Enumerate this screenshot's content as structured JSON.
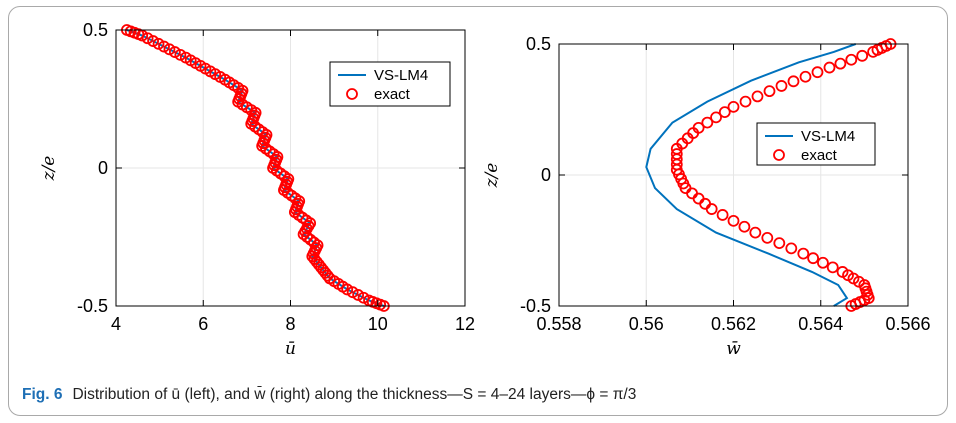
{
  "caption": {
    "label": "Fig. 6",
    "text": "Distribution of ū (left), and w̄ (right) along the thickness—S = 4–24 layers—ϕ = π/3"
  },
  "colors": {
    "series_line": "#0072bd",
    "series_marker": "#ff0000",
    "grid": "#e6e6e6",
    "axis": "#000000"
  },
  "chart_data": [
    {
      "type": "line",
      "title": "",
      "xlabel": "ū",
      "ylabel": "z/e",
      "xlim": [
        4,
        12
      ],
      "ylim": [
        -0.5,
        0.5
      ],
      "xticks": [
        4,
        6,
        8,
        10,
        12
      ],
      "xtick_labels": [
        "4",
        "6",
        "8",
        "10",
        "12"
      ],
      "yticks": [
        -0.5,
        0,
        0.5
      ],
      "ytick_labels": [
        "-0.5",
        "0",
        "0.5"
      ],
      "grid": true,
      "legend_position": "top-right",
      "series": [
        {
          "name": "VS-LM4",
          "style": "line",
          "points": [
            [
              10.14,
              -0.5
            ],
            [
              9.8,
              -0.48
            ],
            [
              9.3,
              -0.44
            ],
            [
              8.9,
              -0.4
            ],
            [
              8.7,
              -0.36
            ],
            [
              8.5,
              -0.32
            ],
            [
              8.62,
              -0.28
            ],
            [
              8.3,
              -0.24
            ],
            [
              8.45,
              -0.2
            ],
            [
              8.1,
              -0.16
            ],
            [
              8.2,
              -0.12
            ],
            [
              7.85,
              -0.08
            ],
            [
              7.95,
              -0.04
            ],
            [
              7.6,
              0.0
            ],
            [
              7.7,
              0.04
            ],
            [
              7.35,
              0.08
            ],
            [
              7.45,
              0.12
            ],
            [
              7.1,
              0.16
            ],
            [
              7.2,
              0.2
            ],
            [
              6.8,
              0.24
            ],
            [
              6.9,
              0.28
            ],
            [
              6.5,
              0.32
            ],
            [
              6.05,
              0.36
            ],
            [
              5.6,
              0.4
            ],
            [
              5.1,
              0.44
            ],
            [
              4.6,
              0.48
            ],
            [
              4.25,
              0.5
            ]
          ]
        },
        {
          "name": "exact",
          "style": "markers",
          "points": [
            [
              10.14,
              -0.5
            ],
            [
              9.8,
              -0.48
            ],
            [
              9.3,
              -0.44
            ],
            [
              8.9,
              -0.4
            ],
            [
              8.7,
              -0.36
            ],
            [
              8.5,
              -0.32
            ],
            [
              8.62,
              -0.28
            ],
            [
              8.3,
              -0.24
            ],
            [
              8.45,
              -0.2
            ],
            [
              8.1,
              -0.16
            ],
            [
              8.2,
              -0.12
            ],
            [
              7.85,
              -0.08
            ],
            [
              7.95,
              -0.04
            ],
            [
              7.6,
              0.0
            ],
            [
              7.7,
              0.04
            ],
            [
              7.35,
              0.08
            ],
            [
              7.45,
              0.12
            ],
            [
              7.1,
              0.16
            ],
            [
              7.2,
              0.2
            ],
            [
              6.8,
              0.24
            ],
            [
              6.9,
              0.28
            ],
            [
              6.5,
              0.32
            ],
            [
              6.05,
              0.36
            ],
            [
              5.6,
              0.4
            ],
            [
              5.1,
              0.44
            ],
            [
              4.6,
              0.48
            ],
            [
              4.25,
              0.5
            ]
          ]
        }
      ]
    },
    {
      "type": "line",
      "title": "",
      "xlabel": "w̄",
      "ylabel": "z/e",
      "xlim": [
        0.558,
        0.566
      ],
      "ylim": [
        -0.5,
        0.5
      ],
      "xticks": [
        0.558,
        0.56,
        0.562,
        0.564,
        0.566
      ],
      "xtick_labels": [
        "0.558",
        "0.56",
        "0.562",
        "0.564",
        "0.566"
      ],
      "yticks": [
        -0.5,
        0,
        0.5
      ],
      "ytick_labels": [
        "-0.5",
        "0",
        "0.5"
      ],
      "grid": true,
      "legend_position": "center-right",
      "series": [
        {
          "name": "VS-LM4",
          "style": "line",
          "points": [
            [
              0.5643,
              -0.5
            ],
            [
              0.5646,
              -0.47
            ],
            [
              0.5644,
              -0.42
            ],
            [
              0.5638,
              -0.37
            ],
            [
              0.5628,
              -0.3
            ],
            [
              0.5616,
              -0.22
            ],
            [
              0.5607,
              -0.13
            ],
            [
              0.5602,
              -0.05
            ],
            [
              0.56,
              0.03
            ],
            [
              0.5601,
              0.1
            ],
            [
              0.5606,
              0.2
            ],
            [
              0.5614,
              0.28
            ],
            [
              0.5624,
              0.36
            ],
            [
              0.5635,
              0.43
            ],
            [
              0.5643,
              0.47
            ],
            [
              0.5648,
              0.5
            ]
          ]
        },
        {
          "name": "exact",
          "style": "markers",
          "points": [
            [
              0.5647,
              -0.5
            ],
            [
              0.5651,
              -0.47
            ],
            [
              0.565,
              -0.42
            ],
            [
              0.5645,
              -0.37
            ],
            [
              0.5636,
              -0.3
            ],
            [
              0.5625,
              -0.22
            ],
            [
              0.5615,
              -0.13
            ],
            [
              0.5609,
              -0.05
            ],
            [
              0.5607,
              0.02
            ],
            [
              0.5607,
              0.1
            ],
            [
              0.5612,
              0.18
            ],
            [
              0.562,
              0.26
            ],
            [
              0.5631,
              0.34
            ],
            [
              0.5642,
              0.41
            ],
            [
              0.5652,
              0.47
            ],
            [
              0.5656,
              0.5
            ]
          ]
        }
      ]
    }
  ]
}
